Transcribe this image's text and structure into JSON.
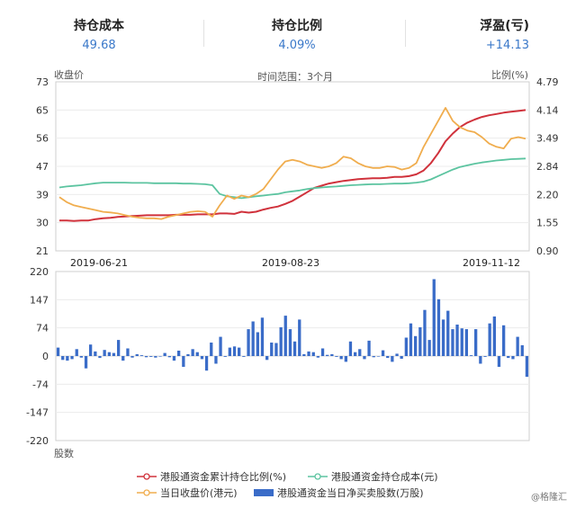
{
  "stats": {
    "cost": {
      "label": "持仓成本",
      "value": "49.68"
    },
    "ratio": {
      "label": "持仓比例",
      "value": "4.09%"
    },
    "pnl": {
      "label": "浮盈(亏)",
      "value": "+14.13"
    }
  },
  "notes": {
    "left_axis": "收盘价",
    "right_axis": "比例(%)",
    "range": "时间范围：3个月",
    "bottom_axis": "股数"
  },
  "watermark": "@格隆汇",
  "colors": {
    "ratio": "#d0323c",
    "cost": "#5cc4a0",
    "price": "#f0ad4e",
    "flow": "#3a6cc8"
  },
  "chart_data": [
    {
      "type": "line",
      "x_tick_labels": [
        "2019-06-21",
        "2019-08-23",
        "2019-11-12"
      ],
      "y_left_ticks": [
        73,
        65,
        56,
        47,
        39,
        30,
        21
      ],
      "y_left_lim": [
        21,
        73
      ],
      "y_right_ticks": [
        "4.79",
        "4.14",
        "3.49",
        "2.84",
        "2.20",
        "1.55",
        "0.90"
      ],
      "y_right_lim": [
        0.9,
        4.79
      ],
      "x_count": 65,
      "series": [
        {
          "name": "港股通资金累计持仓比例(%)",
          "axis": "right",
          "color": "#d0323c",
          "values": [
            1.6,
            1.6,
            1.59,
            1.6,
            1.6,
            1.63,
            1.65,
            1.66,
            1.68,
            1.69,
            1.7,
            1.71,
            1.72,
            1.72,
            1.72,
            1.72,
            1.73,
            1.73,
            1.73,
            1.74,
            1.74,
            1.74,
            1.76,
            1.76,
            1.75,
            1.8,
            1.78,
            1.8,
            1.85,
            1.89,
            1.92,
            1.98,
            2.05,
            2.15,
            2.25,
            2.35,
            2.4,
            2.45,
            2.48,
            2.51,
            2.53,
            2.55,
            2.56,
            2.57,
            2.57,
            2.58,
            2.6,
            2.6,
            2.62,
            2.66,
            2.75,
            2.92,
            3.15,
            3.42,
            3.6,
            3.75,
            3.85,
            3.92,
            3.98,
            4.02,
            4.05,
            4.08,
            4.1,
            4.12,
            4.14
          ]
        },
        {
          "name": "港股通资金持仓成本(元)",
          "axis": "left",
          "color": "#5cc4a0",
          "values": [
            40.5,
            40.8,
            41.0,
            41.2,
            41.5,
            41.8,
            42.0,
            42.0,
            42.0,
            42.0,
            41.9,
            41.9,
            41.9,
            41.8,
            41.8,
            41.8,
            41.8,
            41.7,
            41.7,
            41.6,
            41.5,
            41.2,
            38.5,
            37.8,
            37.5,
            37.2,
            37.5,
            37.8,
            38.0,
            38.3,
            38.5,
            39.0,
            39.3,
            39.6,
            40.0,
            40.3,
            40.5,
            40.7,
            40.8,
            41.0,
            41.2,
            41.3,
            41.4,
            41.5,
            41.5,
            41.6,
            41.7,
            41.7,
            41.8,
            42.0,
            42.3,
            43.0,
            44.0,
            45.0,
            46.0,
            46.8,
            47.3,
            47.8,
            48.2,
            48.5,
            48.8,
            49.0,
            49.2,
            49.3,
            49.4
          ]
        },
        {
          "name": "当日收盘价(港元)",
          "axis": "left",
          "color": "#f0ad4e",
          "values": [
            37.5,
            36.0,
            35.0,
            34.5,
            34.0,
            33.5,
            33.0,
            32.8,
            32.5,
            32.0,
            31.5,
            31.2,
            31.0,
            31.0,
            30.8,
            31.5,
            32.0,
            32.5,
            33.0,
            33.2,
            33.0,
            31.5,
            35.0,
            38.0,
            37.0,
            38.0,
            37.5,
            38.5,
            40.0,
            43.0,
            46.0,
            48.5,
            49.0,
            48.5,
            47.5,
            47.0,
            46.5,
            47.0,
            48.0,
            50.0,
            49.5,
            48.0,
            47.0,
            46.5,
            46.5,
            47.0,
            46.8,
            46.0,
            46.5,
            48.0,
            53.0,
            57.0,
            61.0,
            65.0,
            61.0,
            59.0,
            58.0,
            57.5,
            56.0,
            54.0,
            53.0,
            52.5,
            55.5,
            56.0,
            55.5
          ]
        }
      ]
    },
    {
      "type": "bar",
      "series_name": "港股通资金当日净买卖股数(万股)",
      "y_ticks": [
        220,
        147,
        74,
        0,
        -74,
        -147,
        -220
      ],
      "ylim": [
        -220,
        220
      ],
      "values": [
        22,
        -10,
        -12,
        -8,
        18,
        -4,
        -32,
        30,
        12,
        -5,
        16,
        10,
        8,
        42,
        -12,
        20,
        -4,
        5,
        2,
        -3,
        -2,
        -4,
        0,
        8,
        -3,
        -12,
        14,
        -28,
        5,
        18,
        10,
        -8,
        -38,
        35,
        -20,
        50,
        -2,
        22,
        25,
        22,
        -2,
        70,
        90,
        62,
        100,
        -10,
        35,
        34,
        75,
        105,
        70,
        38,
        95,
        5,
        12,
        10,
        -4,
        20,
        3,
        5,
        -2,
        -8,
        -15,
        38,
        10,
        18,
        -8,
        40,
        -3,
        0,
        15,
        -5,
        -15,
        6,
        -7,
        48,
        85,
        52,
        75,
        120,
        42,
        200,
        148,
        95,
        118,
        70,
        82,
        72,
        70,
        2,
        70,
        -20,
        -2,
        85,
        103,
        -28,
        80,
        -5,
        -8,
        50,
        28,
        -54
      ]
    }
  ],
  "legend": [
    {
      "label": "港股通资金累计持仓比例(%)",
      "color": "#d0323c",
      "kind": "line-dot"
    },
    {
      "label": "港股通资金持仓成本(元)",
      "color": "#5cc4a0",
      "kind": "line-dot"
    },
    {
      "label": "当日收盘价(港元)",
      "color": "#f0ad4e",
      "kind": "line-dot"
    },
    {
      "label": "港股通资金当日净买卖股数(万股)",
      "color": "#3a6cc8",
      "kind": "bar"
    }
  ]
}
